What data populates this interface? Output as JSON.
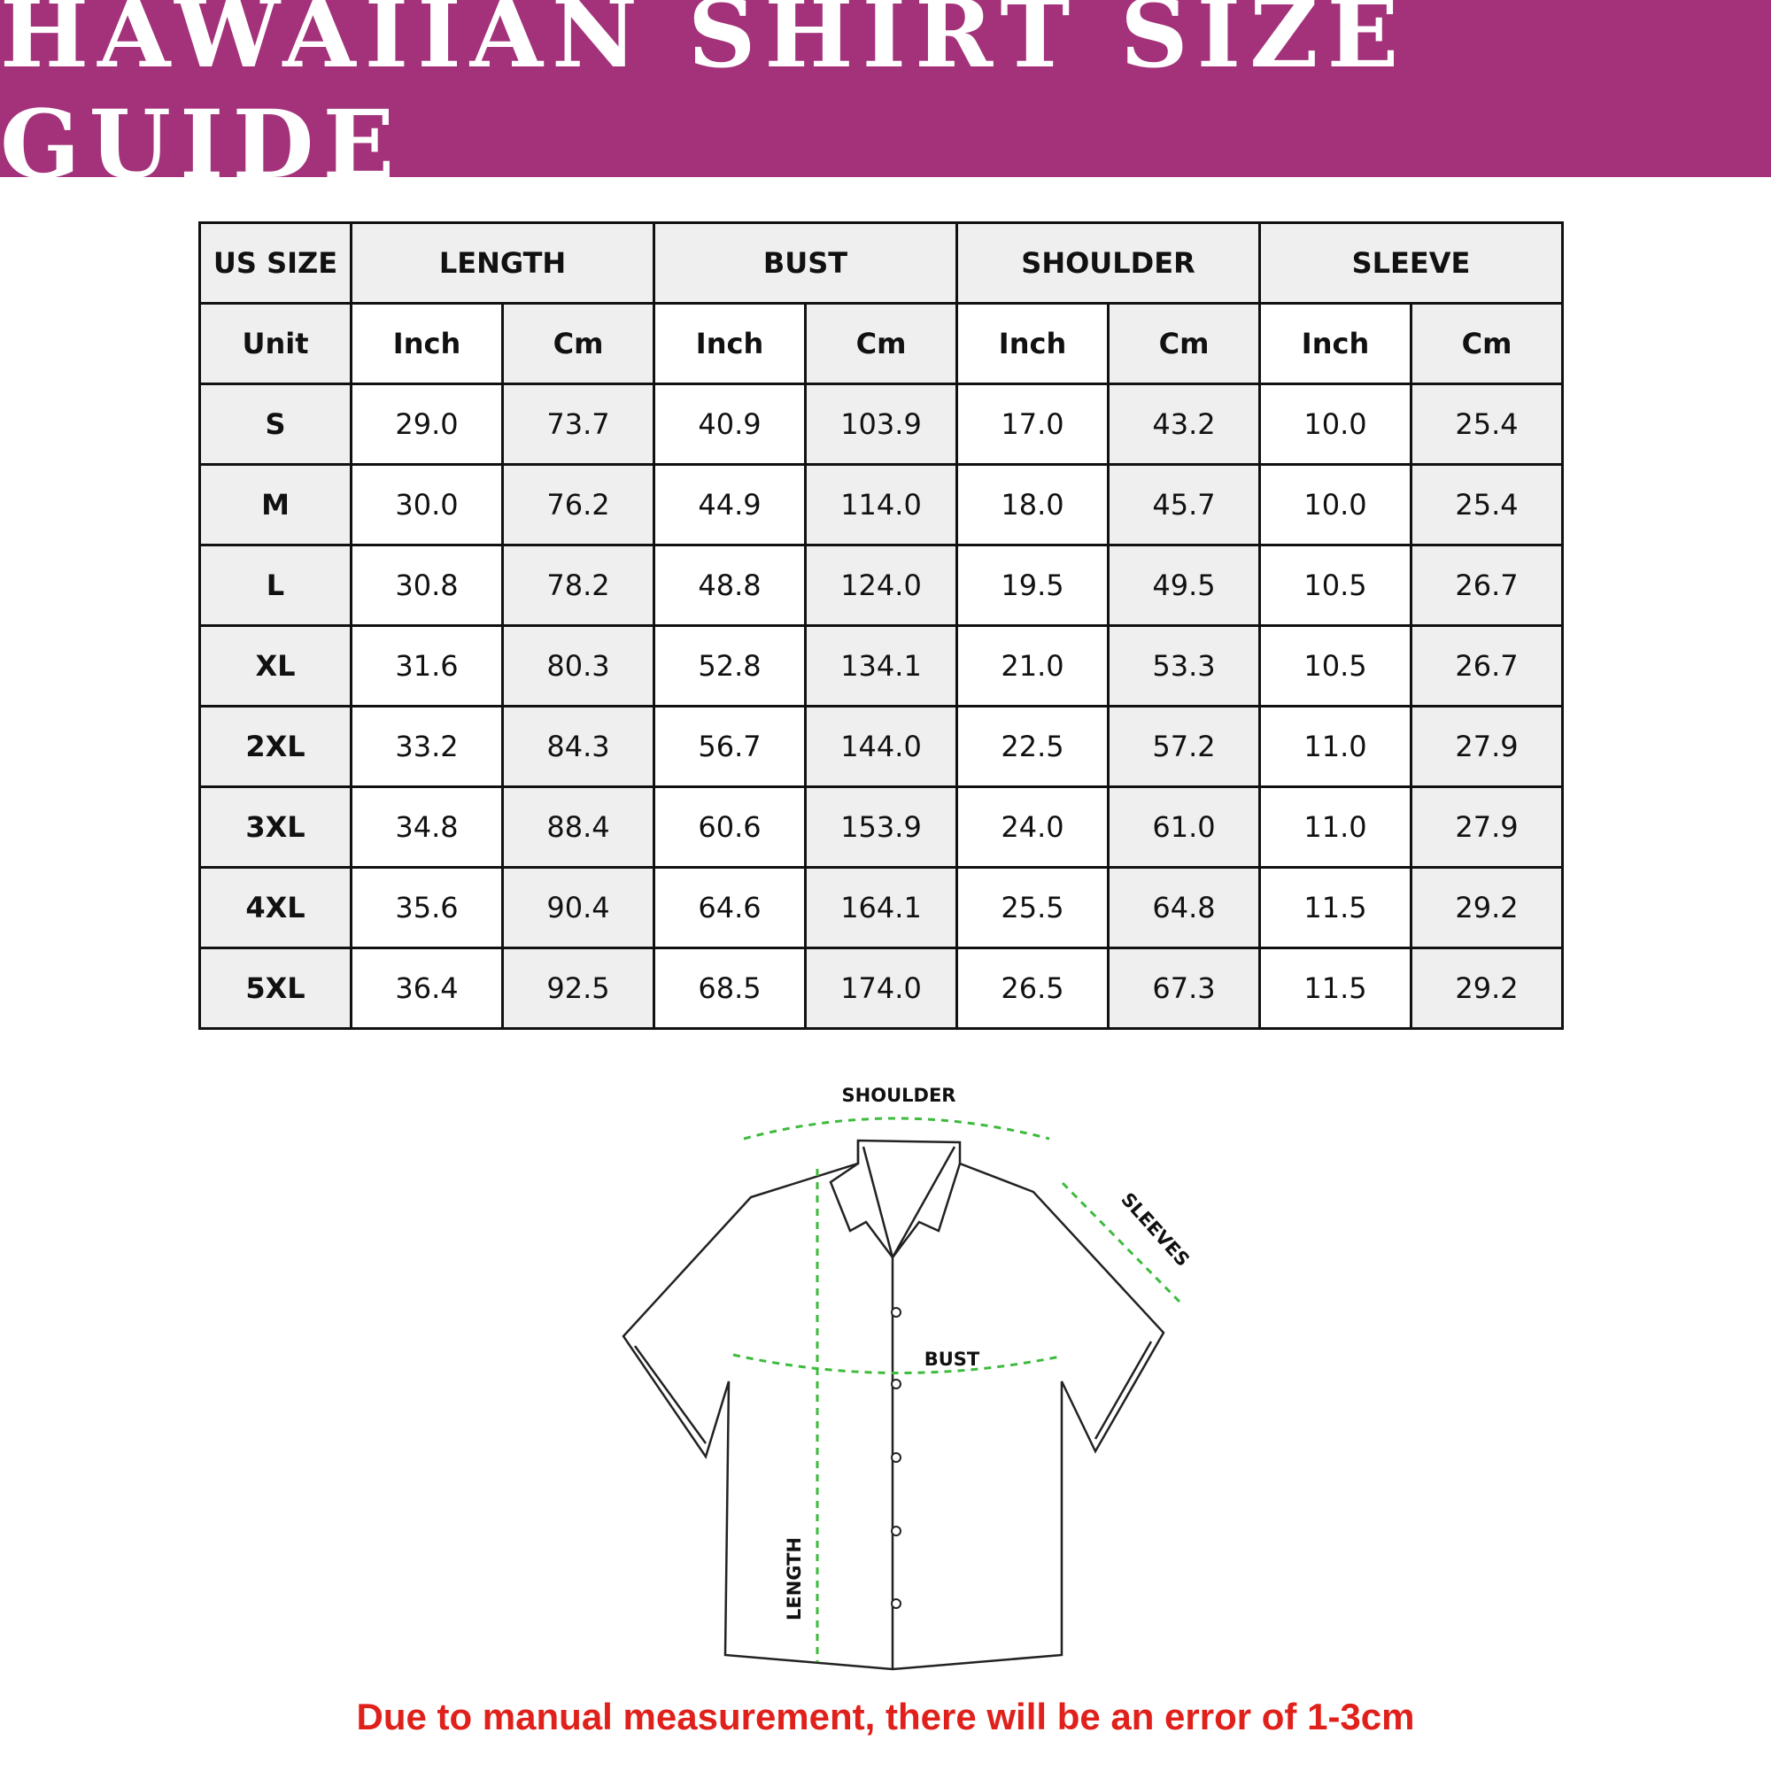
{
  "colors": {
    "banner": "#A3327A",
    "measure_line": "#3DBB3D",
    "note": "#E0201B"
  },
  "title": "HAWAIIAN SHIRT SIZE GUIDE",
  "table": {
    "groups": [
      "US SIZE",
      "LENGTH",
      "BUST",
      "SHOULDER",
      "SLEEVE"
    ],
    "units": [
      "Unit",
      "Inch",
      "Cm",
      "Inch",
      "Cm",
      "Inch",
      "Cm",
      "Inch",
      "Cm"
    ],
    "rows": [
      [
        "S",
        "29.0",
        "73.7",
        "40.9",
        "103.9",
        "17.0",
        "43.2",
        "10.0",
        "25.4"
      ],
      [
        "M",
        "30.0",
        "76.2",
        "44.9",
        "114.0",
        "18.0",
        "45.7",
        "10.0",
        "25.4"
      ],
      [
        "L",
        "30.8",
        "78.2",
        "48.8",
        "124.0",
        "19.5",
        "49.5",
        "10.5",
        "26.7"
      ],
      [
        "XL",
        "31.6",
        "80.3",
        "52.8",
        "134.1",
        "21.0",
        "53.3",
        "10.5",
        "26.7"
      ],
      [
        "2XL",
        "33.2",
        "84.3",
        "56.7",
        "144.0",
        "22.5",
        "57.2",
        "11.0",
        "27.9"
      ],
      [
        "3XL",
        "34.8",
        "88.4",
        "60.6",
        "153.9",
        "24.0",
        "61.0",
        "11.0",
        "27.9"
      ],
      [
        "4XL",
        "35.6",
        "90.4",
        "64.6",
        "164.1",
        "25.5",
        "64.8",
        "11.5",
        "29.2"
      ],
      [
        "5XL",
        "36.4",
        "92.5",
        "68.5",
        "174.0",
        "26.5",
        "67.3",
        "11.5",
        "29.2"
      ]
    ]
  },
  "diagram": {
    "shoulder": "SHOULDER",
    "sleeves": "SLEEVES",
    "bust": "BUST",
    "length": "LENGTH"
  },
  "note": "Due to manual measurement, there will be an error of 1-3cm"
}
